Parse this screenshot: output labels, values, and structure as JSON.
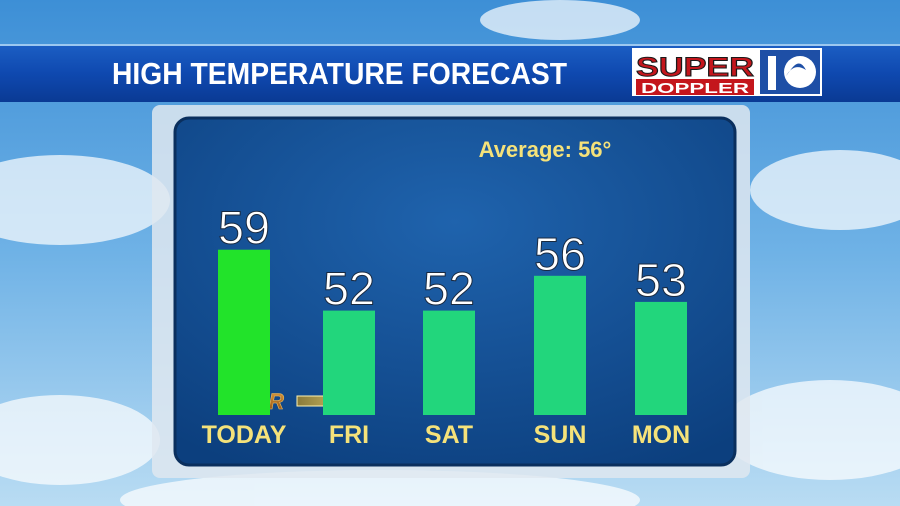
{
  "chart_data": {
    "type": "bar",
    "title": "HIGH TEMPERATURE FORECAST",
    "annotations": [
      "Average: 56°",
      "DRIER"
    ],
    "categories": [
      "TODAY",
      "FRI",
      "SAT",
      "SUN",
      "MON"
    ],
    "values": [
      59,
      52,
      52,
      56,
      53
    ],
    "colors": [
      "#22e32a",
      "#22d67c",
      "#22d67c",
      "#22d67c",
      "#22d67c"
    ],
    "ylim": [
      40,
      70
    ]
  },
  "logo": {
    "line1": "SUPER",
    "line2": "DOPPLER"
  }
}
